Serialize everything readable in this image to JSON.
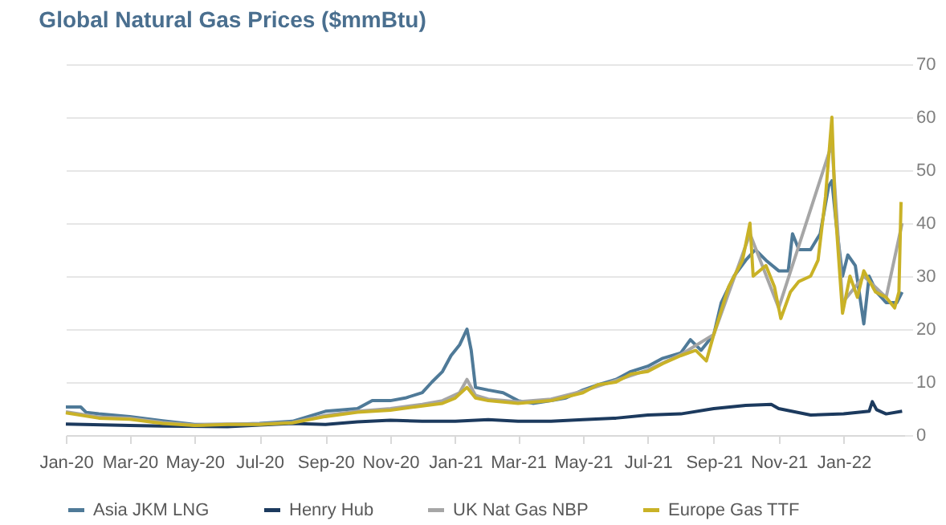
{
  "chart_data": {
    "type": "line",
    "title": "Global Natural Gas Prices ($mmBtu)",
    "xlim": [
      "2020-01-01",
      "2022-02-27"
    ],
    "xticks": [
      {
        "value": "2020-01-01",
        "label": "Jan-20"
      },
      {
        "value": "2020-03-01",
        "label": "Mar-20"
      },
      {
        "value": "2020-05-01",
        "label": "May-20"
      },
      {
        "value": "2020-07-01",
        "label": "Jul-20"
      },
      {
        "value": "2020-09-01",
        "label": "Sep-20"
      },
      {
        "value": "2020-11-01",
        "label": "Nov-20"
      },
      {
        "value": "2021-01-01",
        "label": "Jan-21"
      },
      {
        "value": "2021-03-01",
        "label": "Mar-21"
      },
      {
        "value": "2021-05-01",
        "label": "May-21"
      },
      {
        "value": "2021-07-01",
        "label": "Jul-21"
      },
      {
        "value": "2021-09-01",
        "label": "Sep-21"
      },
      {
        "value": "2021-11-01",
        "label": "Nov-21"
      },
      {
        "value": "2022-01-01",
        "label": "Jan-22"
      }
    ],
    "ylim": [
      0,
      70
    ],
    "yticks": [
      0,
      10,
      20,
      30,
      40,
      50,
      60,
      70
    ],
    "grid": "y",
    "legend": "bottom",
    "line_style": "solid",
    "marker": "none",
    "series": [
      {
        "name": "Asia JKM LNG",
        "color": "#4f7a98",
        "x": [
          "2020-01-01",
          "2020-01-15",
          "2020-01-20",
          "2020-02-01",
          "2020-03-01",
          "2020-04-01",
          "2020-05-01",
          "2020-06-01",
          "2020-07-01",
          "2020-08-01",
          "2020-09-01",
          "2020-10-01",
          "2020-10-15",
          "2020-11-01",
          "2020-11-15",
          "2020-12-01",
          "2020-12-10",
          "2020-12-20",
          "2020-12-28",
          "2021-01-05",
          "2021-01-12",
          "2021-01-16",
          "2021-01-20",
          "2021-02-01",
          "2021-02-15",
          "2021-03-01",
          "2021-03-15",
          "2021-04-01",
          "2021-04-15",
          "2021-05-01",
          "2021-05-15",
          "2021-06-01",
          "2021-06-15",
          "2021-07-01",
          "2021-07-15",
          "2021-08-01",
          "2021-08-10",
          "2021-08-20",
          "2021-09-01",
          "2021-09-08",
          "2021-09-20",
          "2021-10-01",
          "2021-10-10",
          "2021-10-20",
          "2021-11-01",
          "2021-11-10",
          "2021-11-14",
          "2021-11-20",
          "2021-12-01",
          "2021-12-10",
          "2021-12-18",
          "2021-12-21",
          "2021-12-25",
          "2021-12-31",
          "2022-01-05",
          "2022-01-12",
          "2022-01-20",
          "2022-01-25",
          "2022-02-01",
          "2022-02-10",
          "2022-02-20",
          "2022-02-25"
        ],
        "values": [
          5.3,
          5.3,
          4.3,
          4,
          3.5,
          2.7,
          2,
          2,
          2.2,
          2.6,
          4.5,
          5,
          6.5,
          6.5,
          7,
          8,
          10,
          12,
          15,
          17,
          20,
          16,
          9,
          8.5,
          8,
          6.5,
          6,
          6.5,
          7,
          8.5,
          9.5,
          10.5,
          12,
          13,
          14.5,
          15.5,
          18,
          16,
          19,
          25,
          30,
          33,
          35,
          33,
          31,
          31,
          38,
          35,
          35,
          38,
          47,
          48,
          40,
          30,
          34,
          32,
          21,
          30,
          27,
          25,
          25,
          27
        ]
      },
      {
        "name": "Henry Hub",
        "color": "#1c3a5e",
        "x": [
          "2020-01-01",
          "2020-03-01",
          "2020-04-01",
          "2020-06-01",
          "2020-08-01",
          "2020-09-01",
          "2020-10-01",
          "2020-11-01",
          "2020-12-01",
          "2021-01-01",
          "2021-02-01",
          "2021-03-01",
          "2021-04-01",
          "2021-05-01",
          "2021-06-01",
          "2021-07-01",
          "2021-08-01",
          "2021-09-01",
          "2021-10-01",
          "2021-10-25",
          "2021-11-01",
          "2021-12-01",
          "2022-01-01",
          "2022-01-25",
          "2022-01-28",
          "2022-02-01",
          "2022-02-10",
          "2022-02-25"
        ],
        "values": [
          2.1,
          1.8,
          1.7,
          1.6,
          2.2,
          2,
          2.5,
          2.8,
          2.6,
          2.6,
          2.9,
          2.6,
          2.6,
          2.9,
          3.2,
          3.8,
          4,
          5,
          5.6,
          5.8,
          5,
          3.8,
          4,
          4.5,
          6.3,
          4.8,
          4,
          4.5
        ]
      },
      {
        "name": "UK Nat Gas NBP",
        "color": "#a6a6a6",
        "x": [
          "2020-01-01",
          "2020-02-01",
          "2020-03-01",
          "2020-04-01",
          "2020-05-01",
          "2020-06-01",
          "2020-07-01",
          "2020-08-01",
          "2020-09-01",
          "2020-10-01",
          "2020-11-01",
          "2020-12-01",
          "2020-12-20",
          "2021-01-05",
          "2021-01-12",
          "2021-01-20",
          "2021-02-01",
          "2021-03-01",
          "2021-04-01",
          "2021-05-01",
          "2021-06-01",
          "2021-07-01",
          "2021-08-01",
          "2021-09-01",
          "2021-10-05",
          "2021-11-01",
          "2021-12-21",
          "2021-12-31",
          "2022-01-20",
          "2022-02-10",
          "2022-02-25"
        ],
        "values": [
          4.4,
          3.4,
          3.2,
          2.4,
          1.9,
          2.1,
          2.1,
          2.4,
          3.7,
          4.5,
          5,
          5.8,
          6.5,
          8,
          10.5,
          7.5,
          6.8,
          6.3,
          6.8,
          8.3,
          10.3,
          12.3,
          15.2,
          19,
          38,
          24,
          55,
          25,
          30,
          26,
          40
        ]
      },
      {
        "name": "Europe Gas TTF",
        "color": "#c9b227",
        "x": [
          "2020-01-01",
          "2020-02-01",
          "2020-03-01",
          "2020-04-01",
          "2020-05-01",
          "2020-06-01",
          "2020-07-01",
          "2020-08-01",
          "2020-09-01",
          "2020-10-01",
          "2020-11-01",
          "2020-12-01",
          "2020-12-20",
          "2021-01-01",
          "2021-01-12",
          "2021-01-20",
          "2021-02-01",
          "2021-03-01",
          "2021-04-01",
          "2021-05-01",
          "2021-05-15",
          "2021-06-01",
          "2021-06-15",
          "2021-07-01",
          "2021-07-15",
          "2021-08-01",
          "2021-08-15",
          "2021-08-25",
          "2021-09-01",
          "2021-09-15",
          "2021-09-28",
          "2021-10-05",
          "2021-10-08",
          "2021-10-20",
          "2021-10-28",
          "2021-11-03",
          "2021-11-12",
          "2021-11-20",
          "2021-12-01",
          "2021-12-08",
          "2021-12-15",
          "2021-12-21",
          "2021-12-24",
          "2021-12-31",
          "2022-01-07",
          "2022-01-14",
          "2022-01-20",
          "2022-01-31",
          "2022-02-10",
          "2022-02-18",
          "2022-02-22",
          "2022-02-24"
        ],
        "values": [
          4.2,
          3.2,
          3,
          2.2,
          1.8,
          2,
          2,
          2.3,
          3.5,
          4.3,
          4.7,
          5.5,
          6,
          7,
          9,
          7,
          6.5,
          6,
          6.5,
          8,
          9.5,
          10,
          11.5,
          12,
          13.5,
          15,
          16,
          14,
          19,
          28,
          33,
          40,
          30,
          32,
          28,
          22,
          27,
          29,
          30,
          33,
          45,
          60,
          43,
          23,
          30,
          26,
          31,
          27,
          26,
          24,
          27,
          44
        ]
      }
    ]
  }
}
